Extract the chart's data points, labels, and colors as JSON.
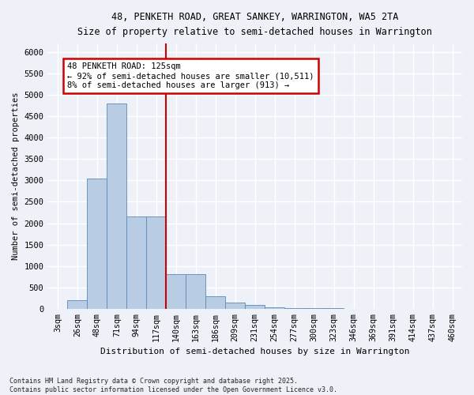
{
  "title_line1": "48, PENKETH ROAD, GREAT SANKEY, WARRINGTON, WA5 2TA",
  "title_line2": "Size of property relative to semi-detached houses in Warrington",
  "xlabel": "Distribution of semi-detached houses by size in Warrington",
  "ylabel": "Number of semi-detached properties",
  "bin_labels": [
    "3sqm",
    "26sqm",
    "48sqm",
    "71sqm",
    "94sqm",
    "117sqm",
    "140sqm",
    "163sqm",
    "186sqm",
    "209sqm",
    "231sqm",
    "254sqm",
    "277sqm",
    "300sqm",
    "323sqm",
    "346sqm",
    "369sqm",
    "391sqm",
    "414sqm",
    "437sqm",
    "460sqm"
  ],
  "bar_values": [
    0,
    200,
    3050,
    4800,
    2150,
    2150,
    800,
    800,
    300,
    150,
    80,
    30,
    20,
    10,
    8,
    5,
    4,
    3,
    2,
    2,
    2
  ],
  "bar_color": "#b8cce4",
  "bar_edgecolor": "#5b8ab8",
  "property_label": "48 PENKETH ROAD: 125sqm",
  "annotation_line1": "← 92% of semi-detached houses are smaller (10,511)",
  "annotation_line2": "8% of semi-detached houses are larger (913) →",
  "vline_color": "#cc0000",
  "annotation_box_color": "#cc0000",
  "ylim": [
    0,
    6200
  ],
  "yticks": [
    0,
    500,
    1000,
    1500,
    2000,
    2500,
    3000,
    3500,
    4000,
    4500,
    5000,
    5500,
    6000
  ],
  "footnote": "Contains HM Land Registry data © Crown copyright and database right 2025.\nContains public sector information licensed under the Open Government Licence v3.0.",
  "bg_color": "#eef2f8",
  "grid_color": "#ffffff"
}
